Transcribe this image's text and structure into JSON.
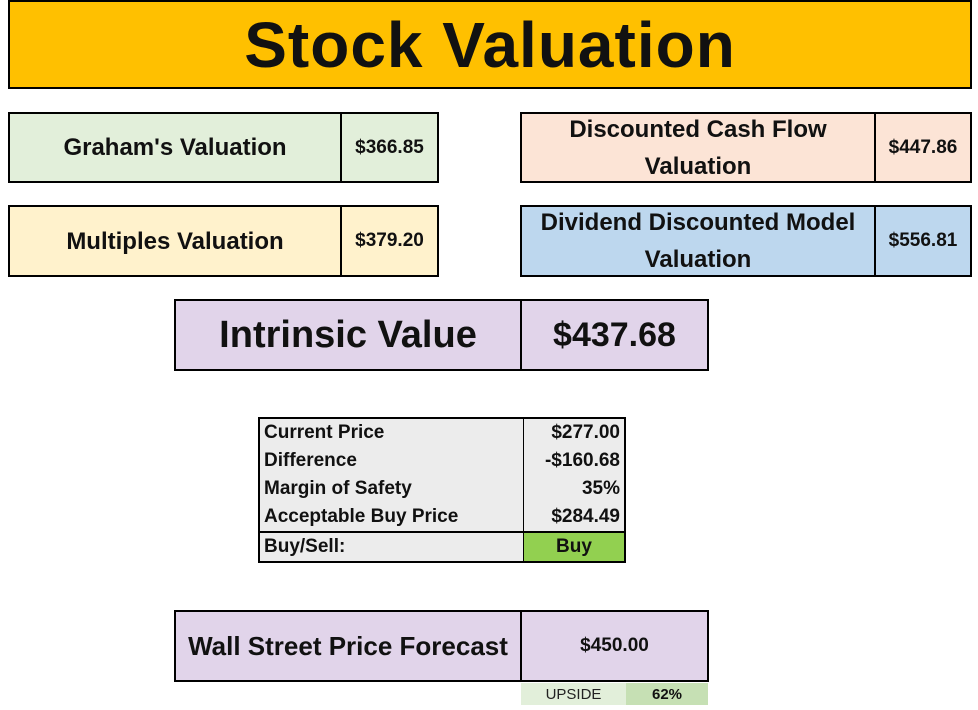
{
  "title": "Stock Valuation",
  "valuations": {
    "graham": {
      "label": "Graham's Valuation",
      "value": "$366.85"
    },
    "multiples": {
      "label": "Multiples Valuation",
      "value": "$379.20"
    },
    "dcf": {
      "label": "Discounted Cash Flow Valuation",
      "value": "$447.86"
    },
    "ddm": {
      "label": "Dividend Discounted Model Valuation",
      "value": "$556.81"
    }
  },
  "intrinsic": {
    "label": "Intrinsic Value",
    "value": "$437.68"
  },
  "summary": {
    "rows": [
      {
        "label": "Current Price",
        "value": "$277.00"
      },
      {
        "label": "Difference",
        "value": "-$160.68"
      },
      {
        "label": "Margin of Safety",
        "value": "35%"
      },
      {
        "label": "Acceptable Buy Price",
        "value": "$284.49"
      }
    ],
    "decision": {
      "label": "Buy/Sell:",
      "value": "Buy"
    }
  },
  "forecast": {
    "label": "Wall Street Price Forecast",
    "value": "$450.00",
    "upside_label": "UPSIDE",
    "upside_value": "62%"
  },
  "colors": {
    "title_bg": "#ffc000",
    "graham_bg": "#e2efda",
    "multiples_bg": "#fff2cc",
    "dcf_bg": "#fce4d6",
    "ddm_bg": "#bdd7ee",
    "intrinsic_bg": "#e1d4ea",
    "buy_bg": "#92d050",
    "upside_bg": "#c6e0b4"
  }
}
